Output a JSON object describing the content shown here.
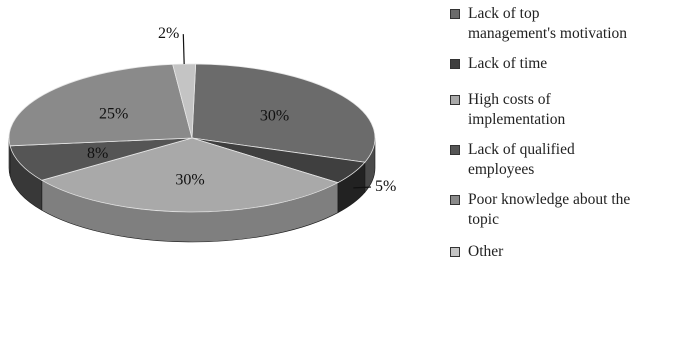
{
  "chart_data": {
    "type": "pie",
    "categories": [
      "Lack of top management's motivation",
      "Lack of time",
      "High costs of implementation",
      "Lack of qualified employees",
      "Poor knowledge about the topic",
      "Other"
    ],
    "values": [
      30,
      5,
      30,
      8,
      25,
      2
    ],
    "data_labels": [
      "30%",
      "5%",
      "30%",
      "8%",
      "25%",
      "2%"
    ],
    "legend_lines": [
      [
        "Lack of top",
        "management's motivation"
      ],
      [
        "Lack of time"
      ],
      [
        "High costs of",
        "implementation"
      ],
      [
        "Lack of qualified",
        "employees"
      ],
      [
        "Poor knowledge about the",
        "topic"
      ],
      [
        "Other"
      ]
    ],
    "colors_top": [
      "#6b6b6b",
      "#3f3f3f",
      "#a9a9a9",
      "#555555",
      "#8a8a8a",
      "#c4c4c4"
    ],
    "colors_side": [
      "#4a4a4a",
      "#222222",
      "#7f7f7f",
      "#383838",
      "#626262",
      "#999999"
    ],
    "legend_placement": "right",
    "style": "3d"
  }
}
